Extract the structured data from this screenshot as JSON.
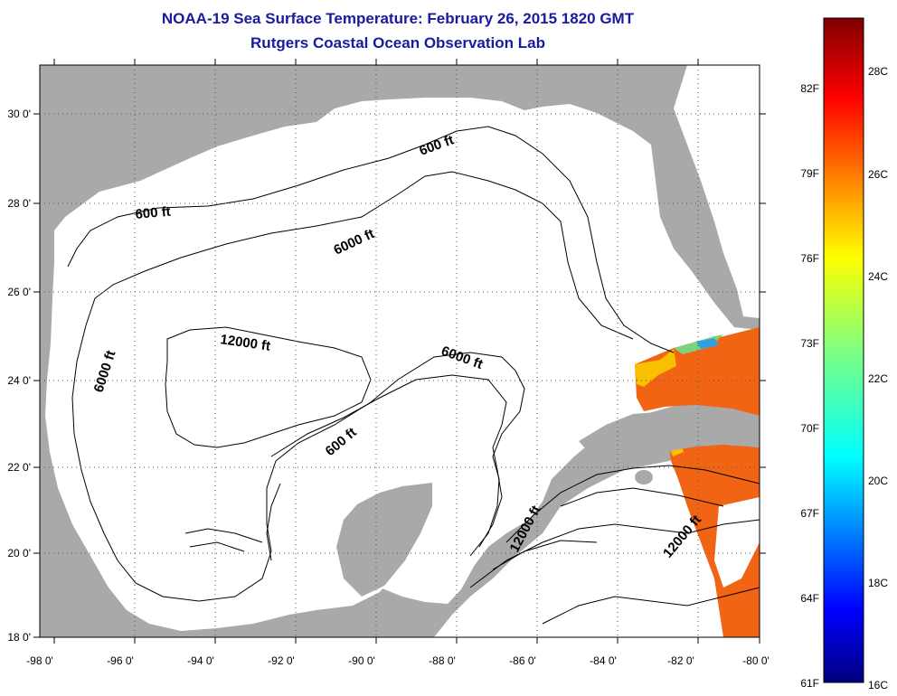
{
  "title": "NOAA-19 Sea Surface Temperature:  February 26, 2015 1820 GMT",
  "subtitle": "Rutgers Coastal Ocean Observation Lab",
  "map": {
    "lon_labels": [
      "-98 0'",
      "-96 0'",
      "-94 0'",
      "-92 0'",
      "-90 0'",
      "-88 0'",
      "-86 0'",
      "-84 0'",
      "-82 0'",
      "-80 0'"
    ],
    "lat_labels": [
      "30 0'",
      "28 0'",
      "26 0'",
      "24 0'",
      "22 0'",
      "20 0'",
      "18 0'"
    ],
    "contour_labels": [
      "600 ft",
      "600 ft",
      "6000 ft",
      "6000 ft",
      "12000 ft",
      "6000 ft",
      "600 ft",
      "12000 ft",
      "12000 ft"
    ],
    "colors": {
      "land": "#a9a9a9",
      "water": "#ffffff",
      "contour": "#000000",
      "title": "#1a1aa0"
    }
  },
  "colorbar": {
    "celsius_labels": [
      "28C",
      "26C",
      "24C",
      "22C",
      "20C",
      "18C",
      "16C"
    ],
    "fahrenheit_labels": [
      "82F",
      "79F",
      "76F",
      "73F",
      "70F",
      "67F",
      "64F",
      "61F"
    ],
    "range_c": [
      16,
      29.5
    ],
    "colormap": "jet"
  }
}
